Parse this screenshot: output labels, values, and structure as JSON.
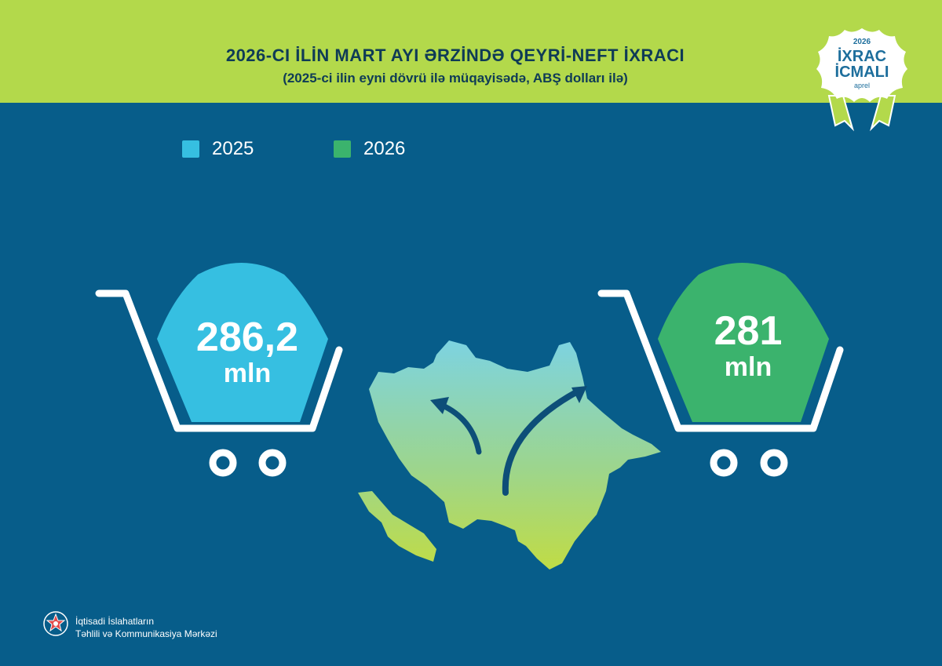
{
  "header": {
    "title": "2026-CI İLİN MART AYI ƏRZİNDƏ QEYRİ-NEFT İXRACI",
    "subtitle": "(2025-ci ilin eyni dövrü ilə müqayisədə, ABŞ dolları ilə)"
  },
  "badge": {
    "year": "2026",
    "line1": "İXRAC",
    "line2": "İCMALI",
    "month": "aprel"
  },
  "chart_data": {
    "type": "bar",
    "title": "2026-CI İLİN MART AYI ƏRZİNDƏ QEYRİ-NEFT İXRACI",
    "subtitle": "(2025-ci ilin eyni dövrü ilə müqayisədə, ABŞ dolları ilə)",
    "categories": [
      "2025",
      "2026"
    ],
    "values": [
      286.2,
      281
    ],
    "value_labels": [
      "286,2",
      "281"
    ],
    "unit": "mln",
    "colors": [
      "#36bfe1",
      "#3bb36d"
    ],
    "legend_placement": "top-left"
  },
  "footer": {
    "line1": "İqtisadi İslahatların",
    "line2": "Təhlili və Kommunikasiya Mərkəzi"
  }
}
